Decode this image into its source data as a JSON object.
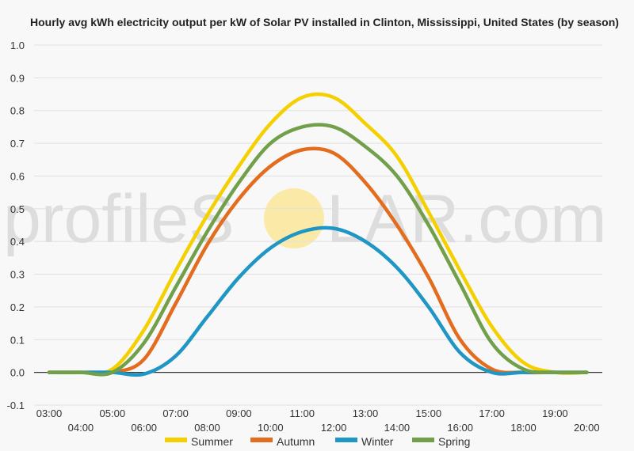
{
  "chart_data": {
    "type": "line",
    "title": "Hourly avg kWh electricity output per kW of Solar PV installed in Clinton, Mississippi, United States (by season)",
    "xlabel": "",
    "ylabel": "",
    "ylim": [
      -0.1,
      1.0
    ],
    "yticks": [
      "1.0",
      "0.9",
      "0.8",
      "0.7",
      "0.6",
      "0.5",
      "0.4",
      "0.3",
      "0.2",
      "0.1",
      "0.0",
      "-0.1"
    ],
    "categories": [
      "03:00",
      "04:00",
      "05:00",
      "06:00",
      "07:00",
      "08:00",
      "09:00",
      "10:00",
      "11:00",
      "12:00",
      "13:00",
      "14:00",
      "15:00",
      "16:00",
      "17:00",
      "18:00",
      "19:00",
      "20:00"
    ],
    "grid": true,
    "legend": "bottom",
    "series": [
      {
        "name": "Summer",
        "color": "#f5d000",
        "values": [
          0.0,
          0.0,
          0.01,
          0.13,
          0.31,
          0.48,
          0.63,
          0.76,
          0.84,
          0.84,
          0.76,
          0.66,
          0.49,
          0.31,
          0.14,
          0.03,
          0.0,
          0.0
        ]
      },
      {
        "name": "Autumn",
        "color": "#e36c1e",
        "values": [
          0.0,
          0.0,
          0.0,
          0.04,
          0.21,
          0.39,
          0.53,
          0.63,
          0.68,
          0.67,
          0.58,
          0.45,
          0.29,
          0.1,
          0.01,
          0.0,
          0.0,
          0.0
        ]
      },
      {
        "name": "Winter",
        "color": "#1f96c3",
        "values": [
          0.0,
          0.0,
          0.0,
          -0.005,
          0.05,
          0.17,
          0.29,
          0.38,
          0.43,
          0.44,
          0.4,
          0.32,
          0.2,
          0.06,
          0.0,
          0.0,
          0.0,
          0.0
        ]
      },
      {
        "name": "Spring",
        "color": "#72a04a",
        "values": [
          0.0,
          0.0,
          0.0,
          0.09,
          0.26,
          0.43,
          0.58,
          0.7,
          0.75,
          0.75,
          0.69,
          0.6,
          0.45,
          0.27,
          0.09,
          0.01,
          0.0,
          0.0
        ]
      }
    ]
  },
  "watermark": {
    "text_left": "profileS",
    "text_right": "LAR.com",
    "sun_color": "#fbe9a8"
  }
}
